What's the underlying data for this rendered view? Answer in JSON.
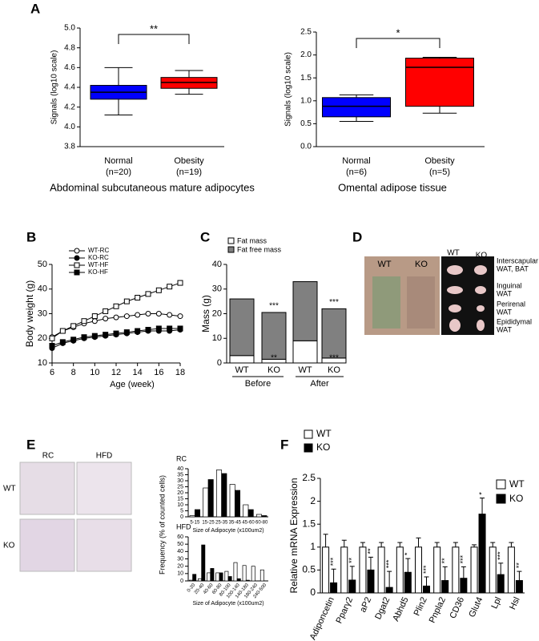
{
  "chart_data": [
    {
      "type": "box",
      "panel": "A",
      "caption": "Abdominal subcutaneous mature adipocytes",
      "y_label": "Signals (log10 scale)",
      "categories": [
        "Normal",
        "Obesity"
      ],
      "n_labels": [
        "(n=20)",
        "(n=19)"
      ],
      "colors": [
        "#0000ff",
        "#ff0000"
      ],
      "significance": "**",
      "boxes": [
        {
          "min": 4.12,
          "q1": 4.28,
          "median": 4.35,
          "q3": 4.42,
          "max": 4.6
        },
        {
          "min": 4.33,
          "q1": 4.39,
          "median": 4.45,
          "q3": 4.5,
          "max": 4.57
        }
      ],
      "ylim": [
        3.8,
        5.0
      ],
      "yticks": [
        3.8,
        {
          "value": 4.0,
          "label": "4.0"
        },
        4.2,
        4.4,
        4.6,
        4.8,
        {
          "value": 5.0,
          "label": "5.0"
        }
      ]
    },
    {
      "type": "box",
      "caption": "Omental adipose tissue",
      "y_label": "Signals (log10 scale)",
      "categories": [
        "Normal",
        "Obesity"
      ],
      "n_labels": [
        "(n=6)",
        "(n=5)"
      ],
      "colors": [
        "#0000ff",
        "#ff0000"
      ],
      "significance": "*",
      "boxes": [
        {
          "min": 0.55,
          "q1": 0.65,
          "median": 0.88,
          "q3": 1.07,
          "max": 1.13
        },
        {
          "min": 0.73,
          "q1": 0.88,
          "median": 1.73,
          "q3": 1.93,
          "max": 1.95
        }
      ],
      "ylim": [
        0,
        2.5
      ],
      "yticks": [
        {
          "value": 0,
          "label": "0.0"
        },
        0.5,
        {
          "value": 1,
          "label": "1.0"
        },
        1.5,
        {
          "value": 2,
          "label": "2.0"
        },
        2.5
      ]
    },
    {
      "type": "line",
      "panel": "B",
      "x_label": "Age (week)",
      "y_label": "Body weight (g)",
      "x": [
        6,
        7,
        8,
        9,
        10,
        11,
        12,
        13,
        14,
        15,
        16,
        17,
        18
      ],
      "series": [
        {
          "name": "WT-RC",
          "marker": "open-circle",
          "values": [
            20.5,
            23,
            24.5,
            26,
            27,
            28,
            28.5,
            29,
            29.5,
            30,
            30,
            29.5,
            29
          ]
        },
        {
          "name": "KO-RC",
          "marker": "filled-circle",
          "values": [
            16,
            18,
            19,
            20,
            20.5,
            21,
            21.5,
            22,
            22.5,
            23,
            23,
            23,
            23.5
          ]
        },
        {
          "name": "WT-HF",
          "marker": "open-square",
          "values": [
            20,
            23,
            25,
            27,
            29,
            31,
            33,
            35,
            36.5,
            38,
            39.5,
            41,
            42.5
          ]
        },
        {
          "name": "KO-HF",
          "marker": "filled-square",
          "values": [
            17,
            18.5,
            19.5,
            20.5,
            21,
            21.5,
            22,
            22.5,
            23,
            23.5,
            24,
            24,
            24
          ]
        }
      ],
      "xlim": [
        6,
        18
      ],
      "xticks": [
        6,
        8,
        10,
        12,
        14,
        16,
        18
      ],
      "ylim": [
        10,
        50
      ],
      "yticks": [
        10,
        20,
        30,
        40,
        50
      ]
    },
    {
      "type": "stacked-bar",
      "panel": "C",
      "y_label": "Mass (g)",
      "categories": [
        "WT",
        "KO",
        "WT",
        "KO"
      ],
      "groups": [
        "Before",
        "After"
      ],
      "series": [
        {
          "name": "Fat mass",
          "color": "#ffffff",
          "values": [
            3,
            1.5,
            9,
            2
          ]
        },
        {
          "name": "Fat free mass",
          "color": "#808080",
          "values": [
            23,
            19,
            24,
            20
          ]
        }
      ],
      "annotations": [
        "***",
        "**",
        "***",
        "***"
      ],
      "ylim": [
        0,
        40
      ],
      "yticks": [
        0,
        10,
        20,
        30,
        40
      ]
    },
    {
      "type": "grouped-bar",
      "panel": "E",
      "title": "RC",
      "x_label": "Size of Adipocyte (x100um2)",
      "y_label": "Frequency (% of counted cells)",
      "categories": [
        "5-15",
        "15-25",
        "25-35",
        "35-45",
        "45-60",
        "60-80"
      ],
      "series": [
        {
          "name": "WT",
          "color": "#ffffff",
          "values": [
            1,
            24,
            39,
            27,
            10,
            2
          ]
        },
        {
          "name": "KO",
          "color": "#000000",
          "values": [
            6,
            31,
            36,
            22,
            6,
            1
          ]
        }
      ],
      "ylim": [
        0,
        40
      ],
      "yticks": [
        0,
        5,
        10,
        15,
        20,
        25,
        30,
        35,
        40
      ]
    },
    {
      "type": "grouped-bar",
      "title": "HFD",
      "x_label": "Size of Adipocyte (x100um2)",
      "categories": [
        "0-20",
        "20-40",
        "40-60",
        "60-80",
        "80-100",
        "100-140",
        "140-180",
        "180-240",
        "240-500"
      ],
      "series": [
        {
          "color": "#ffffff",
          "values": [
            1,
            3,
            11,
            11,
            13,
            25,
            21,
            20,
            15
          ]
        },
        {
          "color": "#000000",
          "values": [
            9,
            49,
            17,
            11,
            6,
            3,
            1,
            0,
            0
          ]
        }
      ],
      "ylim": [
        0,
        60
      ],
      "yticks": [
        0,
        10,
        20,
        30,
        40,
        50,
        60
      ]
    },
    {
      "type": "error-bar",
      "panel": "F",
      "y_label": "Relative mRNA Expression",
      "categories": [
        "Adiponcetin",
        "Pparγ2",
        "aP2",
        "Dgat2",
        "Abhd5",
        "Plin2",
        "Pnpla2",
        "CD36",
        "Glut4",
        "Lpl",
        "Hsl"
      ],
      "series": [
        {
          "name": "WT",
          "color": "#ffffff",
          "values": [
            1,
            1,
            1,
            1,
            1,
            1,
            1,
            1,
            1,
            1,
            1
          ],
          "errors": [
            0.28,
            0.15,
            0.1,
            0.1,
            0.1,
            0.2,
            0.1,
            0.1,
            0.05,
            0.1,
            0.1
          ]
        },
        {
          "name": "KO",
          "color": "#000000",
          "values": [
            0.22,
            0.28,
            0.5,
            0.12,
            0.45,
            0.15,
            0.27,
            0.32,
            1.72,
            0.4,
            0.27
          ],
          "errors": [
            0.3,
            0.3,
            0.28,
            0.35,
            0.3,
            0.2,
            0.3,
            0.25,
            0.35,
            0.25,
            0.2
          ]
        }
      ],
      "significance": [
        "***",
        "**",
        "**",
        "***",
        "*",
        "***",
        "**",
        "***",
        "*",
        "***",
        "**"
      ],
      "ylim": [
        0,
        2.5
      ],
      "yticks": [
        0,
        0.5,
        1,
        1.5,
        2,
        2.5
      ]
    }
  ],
  "panel_d": {
    "panel": "D",
    "photo_labels": [
      "WT",
      "KO",
      "WT",
      "KO"
    ],
    "tissues": [
      "Interscapular",
      "WAT, BAT",
      "Inguinal",
      "WAT",
      "Perirenal",
      "WAT",
      "Epididymal",
      "WAT"
    ]
  },
  "panel_e_images": {
    "columns": [
      "RC",
      "HFD"
    ],
    "rows": [
      "WT",
      "KO"
    ]
  }
}
